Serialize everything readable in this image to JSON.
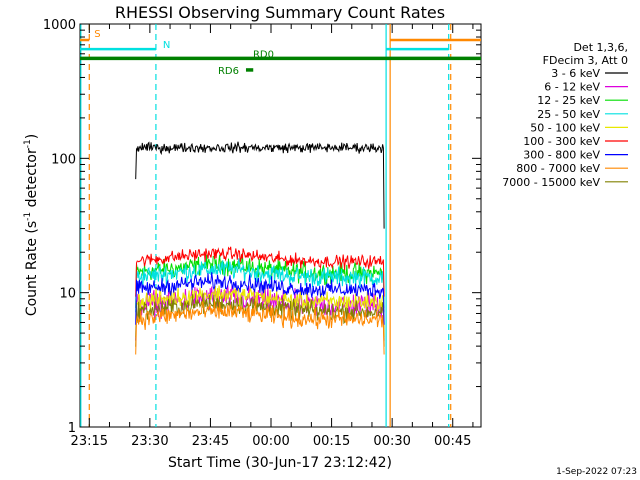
{
  "chart_data": {
    "type": "line",
    "title": "RHESSI Observing Summary Count Rates",
    "xlabel": "Start Time (30-Jun-17 23:12:42)",
    "ylabel_main": "Count Rate (s",
    "ylabel_sup1": "-1",
    "ylabel_mid": " detector",
    "ylabel_sup2": "-1",
    "ylabel_end": ")",
    "y_scale": "log",
    "ylim": [
      1,
      1000
    ],
    "y_ticks": [
      {
        "value": 1,
        "label": "1"
      },
      {
        "value": 10,
        "label": "10"
      },
      {
        "value": 100,
        "label": "100"
      },
      {
        "value": 1000,
        "label": "1000"
      }
    ],
    "x_unit": "minutes after 23:00 on 30-Jun-17",
    "xlim": [
      12.7,
      112
    ],
    "x_ticks": [
      {
        "value": 15,
        "label": "23:15"
      },
      {
        "value": 30,
        "label": "23:30"
      },
      {
        "value": 45,
        "label": "23:45"
      },
      {
        "value": 60,
        "label": "00:00"
      },
      {
        "value": 75,
        "label": "00:15"
      },
      {
        "value": 90,
        "label": "00:30"
      },
      {
        "value": 105,
        "label": "00:45"
      }
    ],
    "data_interval": [
      26.5,
      88.0
    ],
    "legend_header": [
      "Det 1,3,6,",
      "FDecim 3, Att 0"
    ],
    "legend_placement": "right of plot",
    "series": [
      {
        "name": "3 - 6 keV",
        "color": "#000000",
        "level": 120,
        "noise": 0.03
      },
      {
        "name": "6 - 12 keV",
        "color": "#dd00dd",
        "level": 8.0,
        "noise": 0.08
      },
      {
        "name": "12 - 25 keV",
        "color": "#00dd00",
        "level": 14.0,
        "noise": 0.06
      },
      {
        "name": "25 - 50 keV",
        "color": "#00e0e0",
        "level": 13.0,
        "noise": 0.06
      },
      {
        "name": "50 - 100 keV",
        "color": "#e8e800",
        "level": 8.5,
        "noise": 0.06
      },
      {
        "name": "100 - 300 keV",
        "color": "#ff0000",
        "level": 17.0,
        "noise": 0.04
      },
      {
        "name": "300 - 800 keV",
        "color": "#0000ff",
        "level": 10.5,
        "noise": 0.05
      },
      {
        "name": "800 - 7000 keV",
        "color": "#ff8800",
        "level": 6.3,
        "noise": 0.06
      },
      {
        "name": "7000 - 15000 keV",
        "color": "#808000",
        "level": 7.2,
        "noise": 0.06
      }
    ],
    "flag_bars": [
      {
        "label": "S",
        "color": "#ff8800",
        "segments": [
          [
            12.7,
            15.0
          ],
          [
            89.5,
            112
          ]
        ],
        "level": 760
      },
      {
        "label": "N",
        "color": "#00e0e0",
        "segments": [
          [
            12.7,
            31.5
          ],
          [
            88.5,
            104
          ]
        ],
        "level": 650
      },
      {
        "label": "RD0",
        "color": "#008000",
        "segments": [
          [
            12.7,
            112
          ]
        ],
        "level": 555
      },
      {
        "label": "RD6",
        "color": "#008000",
        "segments": [
          [
            53.8,
            55.6
          ]
        ],
        "level": 455
      }
    ],
    "vertical_markers": [
      {
        "label": "S",
        "x": 15.0,
        "color": "#ff8800",
        "style": "dashed"
      },
      {
        "label": "S",
        "x": 89.5,
        "color": "#ff8800",
        "style": "solid"
      },
      {
        "label": "S",
        "x": 104.5,
        "color": "#ff8800",
        "style": "dashed"
      },
      {
        "label": "N",
        "x": 31.5,
        "color": "#00e0e0",
        "style": "dashed"
      },
      {
        "label": "N",
        "x": 88.5,
        "color": "#00e0e0",
        "style": "solid"
      },
      {
        "label": "N",
        "x": 104.0,
        "color": "#00e0e0",
        "style": "dashed"
      },
      {
        "label": "N",
        "x": 12.9,
        "color": "#00e0e0",
        "style": "solid"
      }
    ],
    "timestamp": "1-Sep-2022 07:23"
  }
}
